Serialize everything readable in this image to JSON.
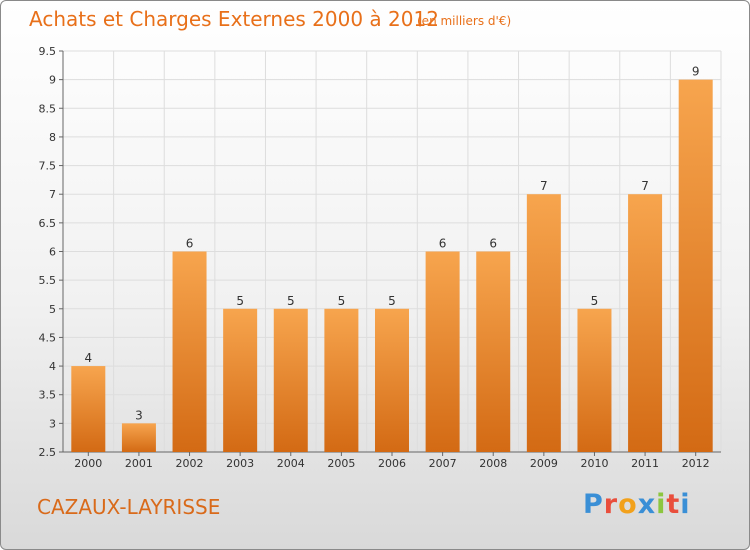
{
  "header": {
    "title": "Achats et Charges Externes 2000 à 2012",
    "unit": "(en milliers d'€)"
  },
  "footer": {
    "commune": "CAZAUX-LAYRISSE",
    "logo_letters": [
      "P",
      "r",
      "o",
      "x",
      "i",
      "t",
      "i"
    ],
    "logo_colors": [
      "#3a8fd6",
      "#e94e3c",
      "#f2a11b",
      "#3a8fd6",
      "#8cc63f",
      "#e94e3c",
      "#3a8fd6"
    ]
  },
  "colors": {
    "accent": "#e8701a",
    "bar_top": "#f7a54e",
    "bar_bottom": "#d36a14"
  },
  "chart_data": {
    "type": "bar",
    "title": "Achats et Charges Externes 2000 à 2012",
    "subtitle": "(en milliers d'€)",
    "categories": [
      "2000",
      "2001",
      "2002",
      "2003",
      "2004",
      "2005",
      "2006",
      "2007",
      "2008",
      "2009",
      "2010",
      "2011",
      "2012"
    ],
    "values": [
      4,
      3,
      6,
      5,
      5,
      5,
      5,
      6,
      6,
      7,
      5,
      7,
      9
    ],
    "ylim": [
      2.5,
      9.5
    ],
    "yticks": [
      "2.5",
      "3",
      "3.5",
      "4",
      "4.5",
      "5",
      "5.5",
      "6",
      "6.5",
      "7",
      "7.5",
      "8",
      "8.5",
      "9",
      "9.5"
    ],
    "xlabel": "",
    "ylabel": "",
    "grid": true
  }
}
